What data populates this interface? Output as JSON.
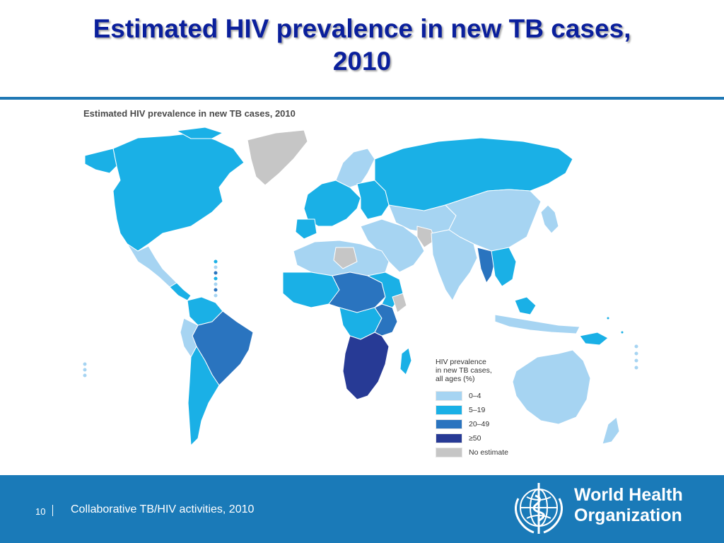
{
  "slide": {
    "title_line1": "Estimated HIV prevalence in new TB cases,",
    "title_line2": "2010"
  },
  "map": {
    "figure_title": "Estimated HIV prevalence in new TB cases, 2010",
    "legend": {
      "title_line1": "HIV prevalence",
      "title_line2": "in new TB cases,",
      "title_line3": "all ages (%)",
      "items": [
        {
          "label": "0–4",
          "color": "#a6d4f2"
        },
        {
          "label": "5–19",
          "color": "#1ab0e6"
        },
        {
          "label": "20–49",
          "color": "#2a74bf"
        },
        {
          "label": "≥50",
          "color": "#273a95"
        },
        {
          "label": "No estimate",
          "color": "#c6c6c6"
        }
      ]
    }
  },
  "footer": {
    "page_number": "10",
    "caption": "Collaborative TB/HIV activities, 2010",
    "org_line1": "World Health",
    "org_line2": "Organization"
  },
  "colors": {
    "title": "#0a1f9c",
    "rule": "#1f78b4",
    "footer_bg": "#1a7ab8"
  }
}
